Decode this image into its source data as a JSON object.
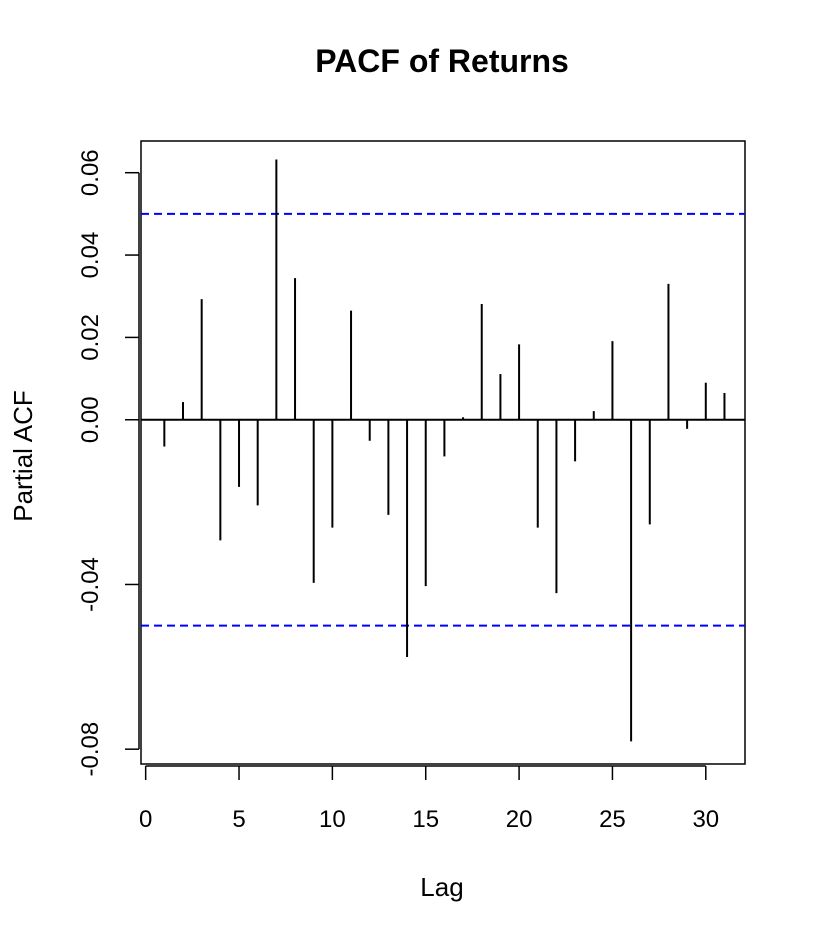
{
  "chart_data": {
    "type": "bar",
    "title": "PACF of Returns",
    "xlabel": "Lag",
    "ylabel": "Partial ACF",
    "xlim": [
      -0.25,
      32.1
    ],
    "ylim": [
      -0.0836,
      0.0677
    ],
    "x_ticks": [
      0,
      5,
      10,
      15,
      20,
      25,
      30
    ],
    "x_tick_labels": [
      "0",
      "5",
      "10",
      "15",
      "20",
      "25",
      "30"
    ],
    "y_ticks": [
      -0.08,
      -0.04,
      0.0,
      0.02,
      0.04,
      0.06
    ],
    "y_tick_labels": [
      "-0.08",
      "-0.04",
      "0.00",
      "0.02",
      "0.04",
      "0.06"
    ],
    "confidence_bound": 0.05,
    "confidence_color": "#0000ff",
    "lags": [
      1,
      2,
      3,
      4,
      5,
      6,
      7,
      8,
      9,
      10,
      11,
      12,
      13,
      14,
      15,
      16,
      17,
      18,
      19,
      20,
      21,
      22,
      23,
      24,
      25,
      26,
      27,
      28,
      29,
      30,
      31
    ],
    "values": [
      -0.0065,
      0.0043,
      0.0293,
      -0.0293,
      -0.0163,
      -0.0208,
      0.0632,
      0.0344,
      -0.0396,
      -0.0262,
      0.0265,
      -0.0051,
      -0.0231,
      -0.0576,
      -0.0404,
      -0.0089,
      0.0006,
      0.0281,
      0.0111,
      0.0183,
      -0.0262,
      -0.0421,
      -0.0101,
      0.0021,
      0.0191,
      -0.0781,
      -0.0254,
      0.033,
      -0.0022,
      0.009,
      0.0065
    ]
  }
}
